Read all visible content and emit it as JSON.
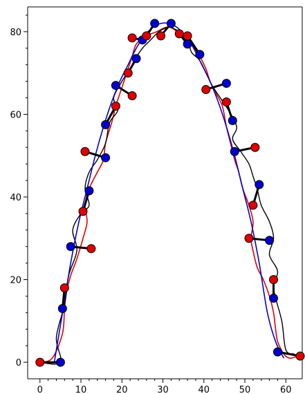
{
  "chart_data": {
    "type": "line",
    "title": "",
    "xlabel": "",
    "ylabel": "",
    "xlim": [
      -3,
      64
    ],
    "ylim": [
      -4,
      86
    ],
    "x_ticks": [
      0,
      10,
      20,
      30,
      40,
      50,
      60
    ],
    "y_ticks": [
      0,
      20,
      40,
      60,
      80
    ],
    "grid": false,
    "colors": {
      "blue": "#0000cc",
      "red": "#dd0000",
      "black": "#000000",
      "axes": "#000000"
    },
    "series": [
      {
        "color": "blue",
        "style": "line",
        "x": [
          3.5,
          5.5,
          7.5,
          9.5,
          11.5,
          13.5,
          15.5,
          17.5,
          19.5,
          21.5,
          23.5,
          25.5,
          27.5,
          29.5,
          31.5,
          33.5,
          35.5,
          37.5,
          39.5,
          41.5,
          43.5,
          45.5,
          47.5,
          49.5,
          51.5,
          53.5,
          55.5,
          57.5,
          59.5
        ],
        "y": [
          0,
          12,
          24,
          34,
          42,
          50,
          57,
          63,
          68,
          72,
          76,
          79,
          81,
          82,
          82,
          81,
          79,
          76,
          72,
          68,
          63,
          57,
          50,
          42,
          34,
          24,
          12,
          5,
          1
        ]
      },
      {
        "color": "black",
        "style": "line",
        "x": [
          0,
          5,
          4,
          6,
          7,
          9,
          8,
          10,
          12,
          11,
          12,
          14,
          16,
          17,
          19,
          18,
          20,
          22,
          23,
          25,
          27,
          29,
          31,
          32,
          34,
          36,
          37,
          39,
          41,
          42,
          44,
          46,
          48,
          47,
          49,
          51,
          52,
          53,
          54,
          56,
          57,
          56,
          58,
          57,
          59,
          60,
          62
        ],
        "y": [
          0,
          0,
          6,
          14,
          21,
          27,
          32,
          36,
          38,
          42,
          46,
          49,
          53,
          58,
          61,
          64,
          68,
          71,
          73,
          76,
          78,
          80,
          81,
          81,
          80,
          78,
          75,
          73,
          69,
          67,
          64,
          61,
          57,
          54,
          51,
          48,
          45,
          42,
          38,
          34,
          30,
          26,
          22,
          18,
          10,
          3,
          2
        ]
      },
      {
        "color": "red",
        "style": "line",
        "x": [
          0,
          3,
          5.5,
          6,
          6.5,
          7.5,
          9,
          10.5,
          11.5,
          11,
          12,
          14,
          15.5,
          16,
          17.5,
          18.5,
          19.5,
          20.5,
          21.5,
          22.5,
          23.5,
          26,
          28.5,
          30.5,
          32,
          33.5,
          35,
          37,
          39,
          40.5,
          41.5,
          43,
          44.5,
          45.5,
          46.5,
          47.5,
          48.5,
          49.5,
          51,
          52,
          51.5,
          52,
          53,
          54.5,
          56,
          57,
          57.5,
          58,
          59.5,
          61,
          63
        ],
        "y": [
          0,
          1,
          7,
          13,
          17,
          21,
          25,
          30,
          34,
          38,
          42,
          46,
          49,
          53,
          58,
          62,
          65,
          68,
          71,
          74,
          77,
          79,
          80,
          81,
          81,
          80,
          79,
          77,
          74,
          71,
          68,
          65,
          62,
          57,
          53,
          49,
          46,
          42,
          38,
          34,
          30,
          27,
          23,
          20,
          16,
          12,
          8,
          5,
          2,
          1,
          1.5
        ]
      }
    ],
    "segments": [
      {
        "from": [
          5,
          0
        ],
        "to": [
          0,
          0
        ]
      },
      {
        "from": [
          5.5,
          13
        ],
        "to": [
          6,
          18
        ]
      },
      {
        "from": [
          7.5,
          28
        ],
        "to": [
          12.5,
          27.5
        ]
      },
      {
        "from": [
          10.5,
          36.5
        ],
        "to": [
          12,
          41.5
        ]
      },
      {
        "from": [
          11,
          51
        ],
        "to": [
          16,
          49.5
        ]
      },
      {
        "from": [
          16,
          57.5
        ],
        "to": [
          18.5,
          62
        ]
      },
      {
        "from": [
          18.5,
          67
        ],
        "to": [
          22.5,
          64.5
        ]
      },
      {
        "from": [
          21.5,
          70
        ],
        "to": [
          23.5,
          73.5
        ]
      },
      {
        "from": [
          22.5,
          78.5
        ],
        "to": [
          25,
          78
        ]
      },
      {
        "from": [
          26,
          79
        ],
        "to": [
          28,
          82
        ]
      },
      {
        "from": [
          29.5,
          79
        ],
        "to": [
          32,
          82
        ]
      },
      {
        "from": [
          34,
          79.5
        ],
        "to": [
          36,
          77
        ]
      },
      {
        "from": [
          36,
          79
        ],
        "to": [
          39,
          74.5
        ]
      },
      {
        "from": [
          40.5,
          66
        ],
        "to": [
          45.5,
          67.5
        ]
      },
      {
        "from": [
          45.5,
          63
        ],
        "to": [
          47,
          58.5
        ]
      },
      {
        "from": [
          47.5,
          51
        ],
        "to": [
          52.5,
          52
        ]
      },
      {
        "from": [
          52,
          38
        ],
        "to": [
          53.5,
          43
        ]
      },
      {
        "from": [
          51,
          30
        ],
        "to": [
          56,
          29.5
        ]
      },
      {
        "from": [
          57,
          20
        ],
        "to": [
          57,
          15.5
        ]
      },
      {
        "from": [
          58,
          2.5
        ],
        "to": [
          63.5,
          1.5
        ]
      }
    ],
    "markers": [
      {
        "color": "red",
        "x": 0,
        "y": 0
      },
      {
        "color": "blue",
        "x": 5,
        "y": 0
      },
      {
        "color": "blue",
        "x": 5.5,
        "y": 13
      },
      {
        "color": "red",
        "x": 6,
        "y": 18
      },
      {
        "color": "blue",
        "x": 7.5,
        "y": 28
      },
      {
        "color": "red",
        "x": 12.5,
        "y": 27.5
      },
      {
        "color": "red",
        "x": 10.5,
        "y": 36.5
      },
      {
        "color": "blue",
        "x": 12,
        "y": 41.5
      },
      {
        "color": "red",
        "x": 11,
        "y": 51
      },
      {
        "color": "blue",
        "x": 16,
        "y": 49.5
      },
      {
        "color": "blue",
        "x": 16,
        "y": 57.5
      },
      {
        "color": "red",
        "x": 18.5,
        "y": 62
      },
      {
        "color": "blue",
        "x": 18.5,
        "y": 67
      },
      {
        "color": "red",
        "x": 22.5,
        "y": 64.5
      },
      {
        "color": "red",
        "x": 21.5,
        "y": 70
      },
      {
        "color": "blue",
        "x": 23.5,
        "y": 73.5
      },
      {
        "color": "red",
        "x": 22.5,
        "y": 78.5
      },
      {
        "color": "blue",
        "x": 25,
        "y": 78
      },
      {
        "color": "red",
        "x": 26,
        "y": 79
      },
      {
        "color": "blue",
        "x": 28,
        "y": 82
      },
      {
        "color": "red",
        "x": 29.5,
        "y": 79
      },
      {
        "color": "blue",
        "x": 32,
        "y": 82
      },
      {
        "color": "red",
        "x": 34,
        "y": 79.5
      },
      {
        "color": "blue",
        "x": 36,
        "y": 77
      },
      {
        "color": "red",
        "x": 36,
        "y": 79
      },
      {
        "color": "blue",
        "x": 39,
        "y": 74.5
      },
      {
        "color": "red",
        "x": 40.5,
        "y": 66
      },
      {
        "color": "blue",
        "x": 45.5,
        "y": 67.5
      },
      {
        "color": "red",
        "x": 45.5,
        "y": 63
      },
      {
        "color": "blue",
        "x": 47,
        "y": 58.5
      },
      {
        "color": "blue",
        "x": 47.5,
        "y": 51
      },
      {
        "color": "red",
        "x": 52.5,
        "y": 52
      },
      {
        "color": "red",
        "x": 52,
        "y": 38
      },
      {
        "color": "blue",
        "x": 53.5,
        "y": 43
      },
      {
        "color": "red",
        "x": 51,
        "y": 30
      },
      {
        "color": "blue",
        "x": 56,
        "y": 29.5
      },
      {
        "color": "red",
        "x": 57,
        "y": 20
      },
      {
        "color": "blue",
        "x": 57,
        "y": 15.5
      },
      {
        "color": "blue",
        "x": 58,
        "y": 2.5
      },
      {
        "color": "red",
        "x": 63.5,
        "y": 1.5
      }
    ]
  }
}
